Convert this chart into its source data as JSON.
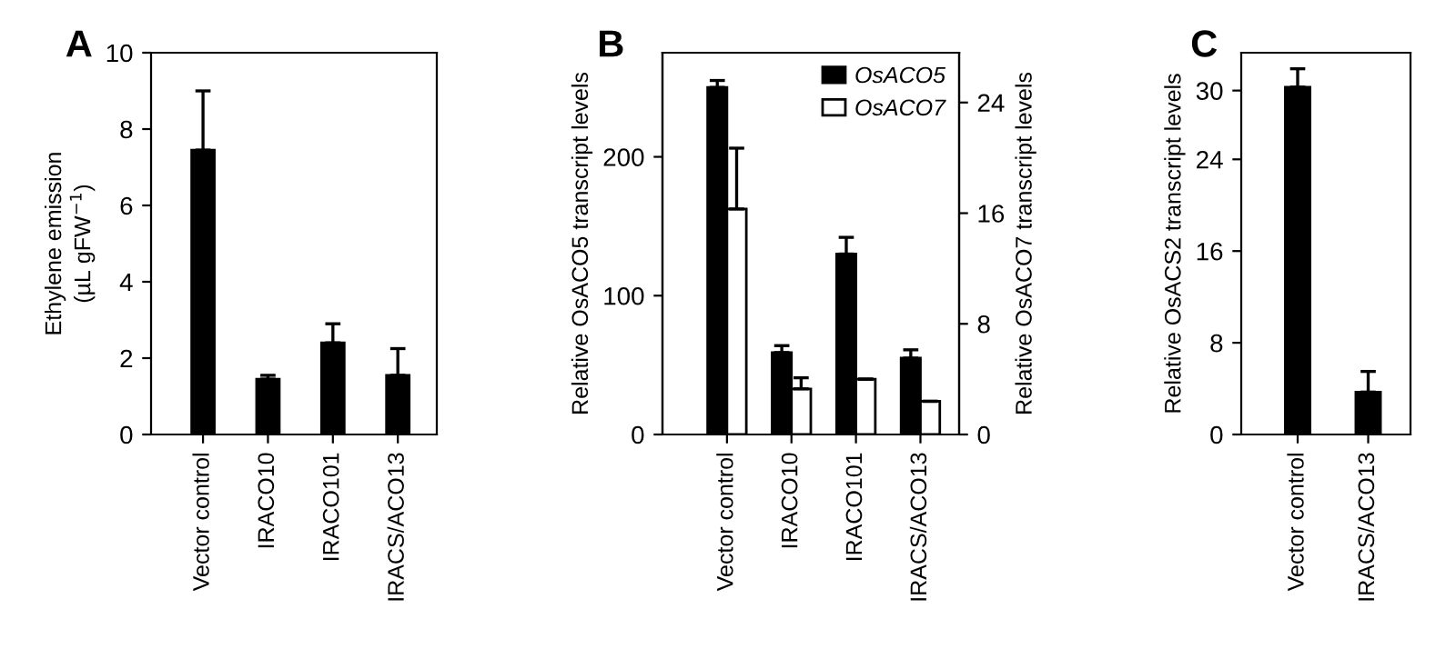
{
  "chart_data": [
    {
      "type": "bar",
      "title": "A",
      "ylabel": "Ethylene emission\n(µL gFW$^{−1}$)",
      "categories": [
        "Vector control",
        "IRACO10",
        "IRACO101",
        "IRACS/ACO13"
      ],
      "series": [
        {
          "color": "#000000",
          "values": [
            7.45,
            1.45,
            2.4,
            1.55
          ],
          "errors": [
            [
              7.45,
              9.0
            ],
            [
              1.45,
              1.55
            ],
            [
              2.4,
              2.9
            ],
            [
              1.55,
              2.25
            ]
          ]
        }
      ],
      "ylim": [
        0,
        10
      ],
      "yticks": [
        0,
        2,
        4,
        6,
        8,
        10
      ]
    },
    {
      "type": "bar",
      "title": "B",
      "ylabel": "Relative OsACO5 transcript levels",
      "y2label": "Relative OsACO7 transcript levels",
      "categories": [
        "Vector control",
        "IRACO10",
        "IRACO101",
        "IRACS/ACO13"
      ],
      "series": [
        {
          "name": "OsACO5",
          "color": "#000000",
          "values": [
            250,
            59,
            130,
            55
          ],
          "errors": [
            [
              250,
              255
            ],
            [
              59,
              64
            ],
            [
              130,
              142
            ],
            [
              55,
              61
            ]
          ]
        },
        {
          "name": "OsACO7",
          "color": "#ffffff",
          "axis": "y2",
          "values": [
            16.3,
            3.3,
            4.0,
            2.4
          ],
          "errors": [
            [
              16.3,
              20.7
            ],
            [
              3.3,
              4.1
            ],
            null,
            null
          ]
        }
      ],
      "ylim": [
        0,
        275
      ],
      "yticks": [
        0,
        100,
        200
      ],
      "y2lim": [
        0,
        27.6
      ],
      "y2ticks": [
        0,
        8,
        16,
        24
      ],
      "legend": "top right"
    },
    {
      "type": "bar",
      "title": "C",
      "ylabel": "Relative OsACS2 transcript levels",
      "categories": [
        "Vector control",
        "IRACS/ACO13"
      ],
      "series": [
        {
          "color": "#000000",
          "values": [
            30.3,
            3.7
          ],
          "errors": [
            [
              30.3,
              31.9
            ],
            [
              3.7,
              5.5
            ]
          ]
        }
      ],
      "ylim": [
        0,
        33.3
      ],
      "yticks": [
        0,
        8,
        16,
        24,
        30
      ]
    }
  ]
}
